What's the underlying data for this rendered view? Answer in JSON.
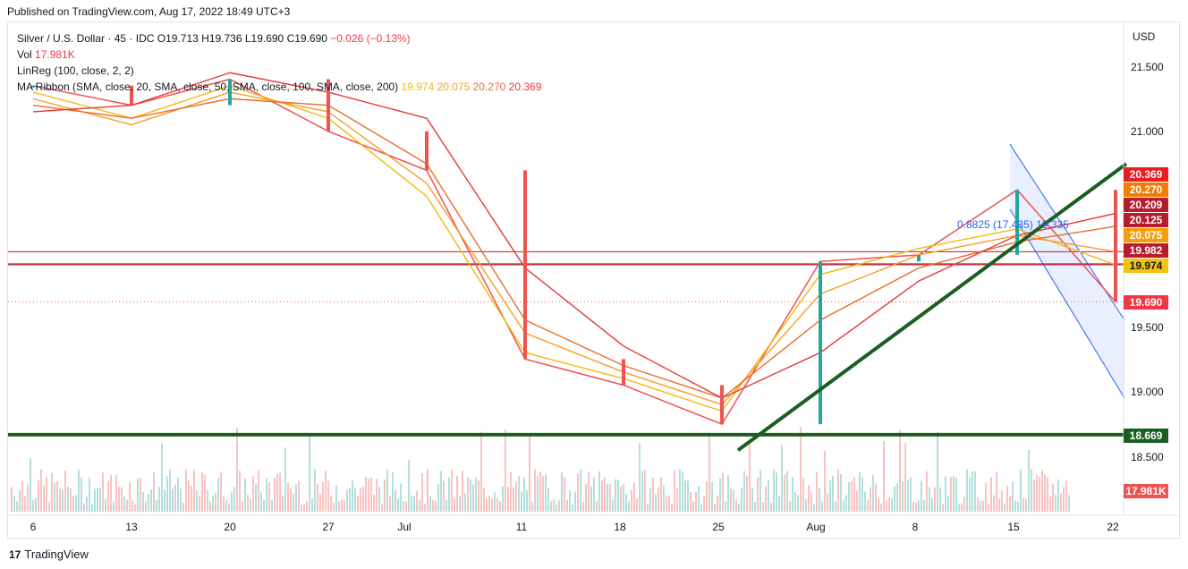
{
  "header": {
    "published": "Published on TradingView.com, Aug 17, 2022 18:49 UTC+3"
  },
  "legend": {
    "title": "Silver / U.S. Dollar",
    "interval": "45",
    "source": "IDC",
    "ohlc": "O19.713 H19.736 L19.690 C19.690",
    "change": "−0.026 (−0.13%)",
    "vol_label": "Vol",
    "vol_value": "17.981K",
    "linreg": "LinReg (100, close, 2, 2)",
    "ribbon_label": "MA Ribbon (SMA, close, 20, SMA, close, 50, SMA, close, 100, SMA, close, 200)",
    "ribbon_values": [
      "19.974",
      "20.075",
      "20.270",
      "20.369"
    ]
  },
  "axis": {
    "currency": "USD",
    "y_ticks": [
      "21.500",
      "21.000",
      "19.500",
      "19.000",
      "18.500"
    ],
    "x_ticks": [
      "6",
      "13",
      "20",
      "27",
      "Jul",
      "11",
      "18",
      "25",
      "Aug",
      "8",
      "15",
      "22"
    ]
  },
  "price_tags": [
    {
      "value": "20.369",
      "color": "#e91e1e"
    },
    {
      "value": "20.270",
      "color": "#f57c00"
    },
    {
      "value": "20.209",
      "color": "#b71c2c"
    },
    {
      "value": "20.125",
      "color": "#b71c2c"
    },
    {
      "value": "20.075",
      "color": "#f59e0b"
    },
    {
      "value": "19.982",
      "color": "#b71c2c"
    },
    {
      "value": "19.974",
      "color": "#f2c40d"
    },
    {
      "value": "19.690",
      "color": "#f23645"
    },
    {
      "value": "18.669",
      "color": "#1b5e20"
    },
    {
      "value": "17.981K",
      "color": "#ef5350"
    }
  ],
  "linreg_label": "0.8825 (17.435) 19.335",
  "branding": {
    "logo_text": "TradingView"
  },
  "colors": {
    "up": "#26a69a",
    "down": "#ef5350",
    "ma20": "#f2b90d",
    "ma50": "#f59e2a",
    "ma100": "#ea6c2b",
    "ma200": "#e63737",
    "trend": "#1b5e20",
    "channel": "#2962ff",
    "hline": "#b71c2c"
  },
  "chart_data": {
    "type": "line",
    "title": "Silver / U.S. Dollar",
    "interval": "45",
    "ylabel": "USD",
    "ylim": [
      18.1,
      21.8
    ],
    "x": [
      "6",
      "13",
      "20",
      "27",
      "Jul",
      "11",
      "18",
      "25",
      "Aug",
      "8",
      "15",
      "22"
    ],
    "series": [
      {
        "name": "Silver / U.S. Dollar",
        "values": [
          21.35,
          21.2,
          21.4,
          21.0,
          20.7,
          19.25,
          19.05,
          18.75,
          20.0,
          20.05,
          20.55,
          19.69
        ]
      },
      {
        "name": "SMA 20",
        "values": [
          21.3,
          21.1,
          21.35,
          21.1,
          20.5,
          19.3,
          19.1,
          18.85,
          19.9,
          20.1,
          20.25,
          19.974
        ]
      },
      {
        "name": "SMA 50",
        "values": [
          21.25,
          21.05,
          21.3,
          21.15,
          20.6,
          19.45,
          19.15,
          18.9,
          19.75,
          20.05,
          20.2,
          20.075
        ]
      },
      {
        "name": "SMA 100",
        "values": [
          21.2,
          21.1,
          21.25,
          21.2,
          20.75,
          19.55,
          19.2,
          18.95,
          19.55,
          19.95,
          20.15,
          20.27
        ]
      },
      {
        "name": "SMA 200",
        "values": [
          21.15,
          21.2,
          21.45,
          21.3,
          21.1,
          19.95,
          19.35,
          18.95,
          19.3,
          19.85,
          20.2,
          20.369
        ]
      }
    ],
    "horizontal_levels": [
      20.075,
      19.982,
      19.974,
      18.669
    ],
    "trendline": {
      "from": [
        "25",
        18.55
      ],
      "to": [
        "22",
        20.75
      ]
    },
    "linreg_channel": {
      "upper": [
        20.9,
        19.55
      ],
      "lower": [
        20.4,
        18.95
      ],
      "from": "15",
      "to": "22"
    },
    "last_close": 19.69,
    "volume_last": "17.981K",
    "grid": false,
    "legend": "top-left"
  }
}
